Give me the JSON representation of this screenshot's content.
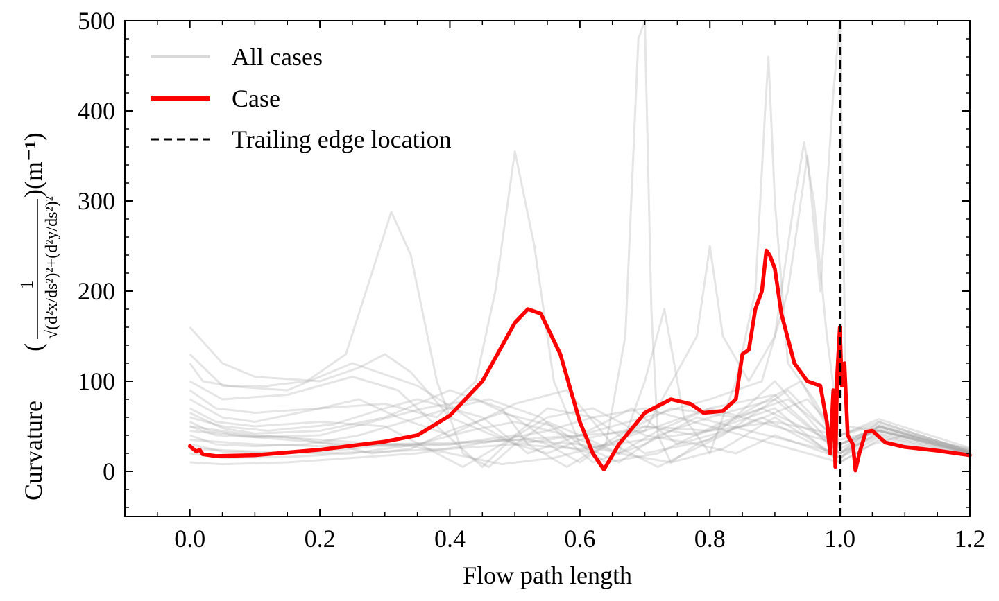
{
  "chart_data": {
    "type": "line",
    "xlabel": "Flow path length",
    "ylabel": "Curvature",
    "ylabel_formula": {
      "open": "(",
      "numerator": "1",
      "denominator": "√(d²x/ds²)²+(d²y/ds²)²",
      "close": ")(m⁻¹)"
    },
    "xlim": [
      -0.1,
      1.2
    ],
    "ylim": [
      -50,
      500
    ],
    "xticks": [
      0.0,
      0.2,
      0.4,
      0.6,
      0.8,
      1.0,
      1.2
    ],
    "xtick_labels": [
      "0.0",
      "0.2",
      "0.4",
      "0.6",
      "0.8",
      "1.0",
      "1.2"
    ],
    "yticks": [
      0,
      100,
      200,
      300,
      400,
      500
    ],
    "ytick_labels": [
      "0",
      "100",
      "200",
      "300",
      "400",
      "500"
    ],
    "grid": false,
    "legend_position": "top-left",
    "legend": [
      {
        "label": "All cases",
        "color": "#b4b4b4",
        "style": "solid"
      },
      {
        "label": "Case",
        "color": "#ff0000",
        "style": "solid"
      },
      {
        "label": "Trailing edge location",
        "color": "#000000",
        "style": "dashed"
      }
    ],
    "trailing_edge_x": 1.0,
    "case_series": {
      "name": "Case",
      "color": "#ff0000",
      "x": [
        0.0,
        0.005,
        0.01,
        0.015,
        0.02,
        0.04,
        0.1,
        0.2,
        0.3,
        0.35,
        0.4,
        0.45,
        0.5,
        0.52,
        0.54,
        0.57,
        0.6,
        0.62,
        0.637,
        0.66,
        0.7,
        0.74,
        0.77,
        0.79,
        0.82,
        0.84,
        0.85,
        0.86,
        0.87,
        0.88,
        0.887,
        0.892,
        0.9,
        0.91,
        0.93,
        0.95,
        0.97,
        0.98,
        0.985,
        0.99,
        0.993,
        0.996,
        1.0,
        1.003,
        1.007,
        1.012,
        1.02,
        1.024,
        1.03,
        1.04,
        1.05,
        1.07,
        1.1,
        1.15,
        1.2
      ],
      "y": [
        28,
        25,
        22,
        24,
        19,
        17,
        18,
        24,
        33,
        40,
        62,
        100,
        165,
        180,
        175,
        130,
        55,
        20,
        2,
        30,
        65,
        80,
        75,
        65,
        67,
        80,
        130,
        135,
        180,
        200,
        245,
        240,
        225,
        175,
        120,
        100,
        95,
        55,
        20,
        90,
        5,
        110,
        160,
        95,
        120,
        40,
        30,
        1,
        20,
        44,
        45,
        32,
        27,
        23,
        18
      ]
    },
    "background_series": [
      {
        "x": [
          0.0,
          0.05,
          0.15,
          0.25,
          0.35,
          0.45,
          0.5,
          0.55,
          0.6,
          0.7,
          0.8,
          0.9,
          1.0,
          1.05,
          1.1,
          1.2
        ],
        "y": [
          130,
          95,
          90,
          120,
          95,
          50,
          30,
          20,
          35,
          50,
          45,
          70,
          10,
          30,
          40,
          25
        ]
      },
      {
        "x": [
          0.0,
          0.05,
          0.15,
          0.25,
          0.32,
          0.38,
          0.45,
          0.5,
          0.55,
          0.62,
          0.7,
          0.8,
          0.9,
          1.0,
          1.06,
          1.2
        ],
        "y": [
          100,
          80,
          85,
          105,
          90,
          50,
          5,
          40,
          70,
          60,
          20,
          35,
          100,
          20,
          55,
          22
        ]
      },
      {
        "x": [
          0.0,
          0.05,
          0.1,
          0.2,
          0.26,
          0.32,
          0.4,
          0.5,
          0.58,
          0.65,
          0.72,
          0.82,
          0.92,
          1.0,
          1.06,
          1.2
        ],
        "y": [
          80,
          60,
          55,
          70,
          80,
          60,
          40,
          75,
          90,
          30,
          5,
          40,
          90,
          30,
          50,
          20
        ]
      },
      {
        "x": [
          0.0,
          0.05,
          0.12,
          0.22,
          0.3,
          0.35,
          0.45,
          0.52,
          0.6,
          0.68,
          0.75,
          0.85,
          0.95,
          1.0,
          1.06,
          1.2
        ],
        "y": [
          60,
          50,
          45,
          52,
          70,
          80,
          60,
          20,
          40,
          70,
          30,
          50,
          80,
          40,
          52,
          24
        ]
      },
      {
        "x": [
          0.0,
          0.05,
          0.1,
          0.2,
          0.3,
          0.4,
          0.48,
          0.52,
          0.58,
          0.66,
          0.74,
          0.84,
          0.94,
          1.0,
          1.06,
          1.2
        ],
        "y": [
          65,
          48,
          42,
          45,
          60,
          90,
          70,
          30,
          5,
          40,
          70,
          60,
          100,
          25,
          48,
          21
        ]
      },
      {
        "x": [
          0.0,
          0.04,
          0.1,
          0.2,
          0.28,
          0.36,
          0.44,
          0.5,
          0.56,
          0.62,
          0.7,
          0.78,
          0.88,
          1.0,
          1.06,
          1.2
        ],
        "y": [
          50,
          40,
          38,
          40,
          55,
          70,
          80,
          60,
          30,
          20,
          50,
          40,
          70,
          30,
          45,
          22
        ]
      },
      {
        "x": [
          0.0,
          0.04,
          0.1,
          0.18,
          0.26,
          0.33,
          0.4,
          0.46,
          0.54,
          0.62,
          0.7,
          0.78,
          0.86,
          1.0,
          1.06,
          1.2
        ],
        "y": [
          40,
          30,
          28,
          30,
          40,
          55,
          70,
          80,
          60,
          10,
          30,
          60,
          45,
          20,
          42,
          20
        ]
      },
      {
        "x": [
          0.0,
          0.04,
          0.1,
          0.2,
          0.3,
          0.38,
          0.42,
          0.48,
          0.55,
          0.62,
          0.7,
          0.78,
          0.88,
          1.0,
          1.06,
          1.2
        ],
        "y": [
          70,
          55,
          50,
          55,
          50,
          20,
          5,
          30,
          60,
          70,
          40,
          30,
          60,
          15,
          50,
          23
        ]
      },
      {
        "x": [
          0.0,
          0.03,
          0.08,
          0.15,
          0.22,
          0.28,
          0.34,
          0.4,
          0.48,
          0.56,
          0.64,
          0.72,
          0.82,
          0.92,
          1.0,
          1.06,
          1.2
        ],
        "y": [
          55,
          45,
          40,
          38,
          30,
          20,
          25,
          45,
          65,
          50,
          10,
          20,
          55,
          80,
          35,
          46,
          21
        ]
      },
      {
        "x": [
          0.0,
          0.05,
          0.1,
          0.2,
          0.26,
          0.3,
          0.34,
          0.4,
          0.5,
          0.6,
          0.7,
          0.8,
          0.9,
          1.0,
          1.06,
          1.2
        ],
        "y": [
          160,
          120,
          105,
          100,
          115,
          130,
          110,
          60,
          30,
          25,
          35,
          45,
          55,
          40,
          58,
          26
        ]
      },
      {
        "x": [
          0.0,
          0.05,
          0.12,
          0.2,
          0.25,
          0.3,
          0.34,
          0.4,
          0.48,
          0.56,
          0.64,
          0.72,
          0.8,
          0.9,
          1.0,
          1.06,
          1.2
        ],
        "y": [
          30,
          22,
          20,
          22,
          25,
          30,
          28,
          20,
          8,
          15,
          30,
          50,
          70,
          85,
          20,
          40,
          19
        ]
      },
      {
        "x": [
          0.0,
          0.05,
          0.15,
          0.25,
          0.35,
          0.43,
          0.5,
          0.58,
          0.66,
          0.74,
          0.82,
          0.9,
          1.0,
          1.06,
          1.2
        ],
        "y": [
          20,
          15,
          16,
          20,
          30,
          45,
          55,
          40,
          20,
          10,
          25,
          60,
          15,
          38,
          18
        ]
      },
      {
        "x": [
          0.0,
          0.05,
          0.15,
          0.25,
          0.35,
          0.42,
          0.48,
          0.55,
          0.62,
          0.7,
          0.8,
          0.9,
          1.0,
          1.06,
          1.2
        ],
        "y": [
          10,
          8,
          10,
          15,
          20,
          28,
          35,
          45,
          60,
          70,
          50,
          30,
          10,
          35,
          17
        ]
      },
      {
        "x": [
          0.0,
          0.02,
          0.06,
          0.12,
          0.18,
          0.24,
          0.28,
          0.31,
          0.34,
          0.38,
          0.42,
          0.46,
          0.5,
          0.55,
          0.6,
          0.66,
          0.72,
          0.8,
          0.9,
          1.0,
          1.06,
          1.2
        ],
        "y": [
          120,
          100,
          95,
          95,
          100,
          130,
          220,
          288,
          240,
          100,
          20,
          5,
          30,
          55,
          40,
          20,
          45,
          70,
          50,
          30,
          45,
          20
        ]
      },
      {
        "x": [
          0.0,
          0.04,
          0.1,
          0.2,
          0.3,
          0.38,
          0.44,
          0.47,
          0.5,
          0.53,
          0.56,
          0.6,
          0.66,
          0.72,
          0.8,
          0.9,
          1.0,
          1.06,
          1.2
        ],
        "y": [
          90,
          70,
          65,
          70,
          75,
          60,
          100,
          200,
          355,
          250,
          100,
          30,
          10,
          40,
          60,
          80,
          20,
          50,
          22
        ]
      },
      {
        "x": [
          0.0,
          0.1,
          0.2,
          0.3,
          0.4,
          0.5,
          0.55,
          0.6,
          0.64,
          0.67,
          0.69,
          0.7,
          0.71,
          0.72,
          0.74,
          0.78,
          0.84,
          0.9,
          1.0,
          1.06,
          1.2
        ],
        "y": [
          50,
          40,
          35,
          30,
          30,
          40,
          30,
          10,
          30,
          150,
          480,
          500,
          180,
          40,
          10,
          30,
          20,
          40,
          15,
          45,
          20
        ]
      },
      {
        "x": [
          0.0,
          0.1,
          0.2,
          0.3,
          0.4,
          0.5,
          0.6,
          0.66,
          0.7,
          0.73,
          0.76,
          0.8,
          0.84,
          0.87,
          0.885,
          0.89,
          0.9,
          0.92,
          0.96,
          1.0,
          1.06,
          1.2
        ],
        "y": [
          45,
          38,
          32,
          28,
          30,
          35,
          30,
          20,
          100,
          180,
          60,
          20,
          100,
          200,
          400,
          460,
          300,
          120,
          80,
          30,
          50,
          21
        ]
      },
      {
        "x": [
          0.0,
          0.1,
          0.2,
          0.3,
          0.4,
          0.5,
          0.6,
          0.7,
          0.78,
          0.8,
          0.82,
          0.86,
          0.9,
          0.93,
          0.945,
          0.96,
          0.98,
          1.0,
          1.06,
          1.2
        ],
        "y": [
          35,
          30,
          28,
          30,
          32,
          35,
          40,
          45,
          150,
          250,
          150,
          100,
          150,
          300,
          365,
          300,
          150,
          40,
          55,
          22
        ]
      },
      {
        "x": [
          0.0,
          0.1,
          0.2,
          0.3,
          0.4,
          0.5,
          0.6,
          0.7,
          0.8,
          0.88,
          0.92,
          0.95,
          0.97,
          0.99,
          1.0,
          1.01,
          1.06,
          1.2
        ],
        "y": [
          25,
          22,
          20,
          22,
          25,
          30,
          40,
          60,
          80,
          100,
          200,
          350,
          200,
          420,
          500,
          50,
          45,
          20
        ]
      }
    ]
  }
}
